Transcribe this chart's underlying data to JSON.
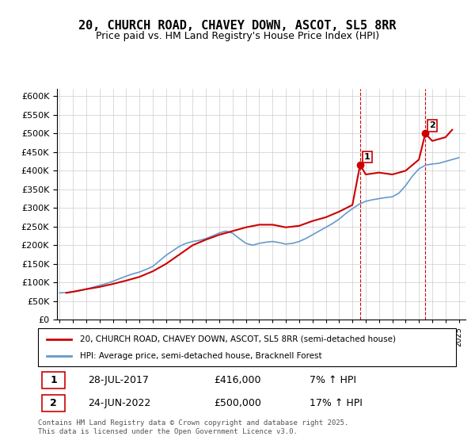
{
  "title": "20, CHURCH ROAD, CHAVEY DOWN, ASCOT, SL5 8RR",
  "subtitle": "Price paid vs. HM Land Registry's House Price Index (HPI)",
  "ylabel_ticks": [
    "£0",
    "£50K",
    "£100K",
    "£150K",
    "£200K",
    "£250K",
    "£300K",
    "£350K",
    "£400K",
    "£450K",
    "£500K",
    "£550K",
    "£600K"
  ],
  "ytick_values": [
    0,
    50000,
    100000,
    150000,
    200000,
    250000,
    300000,
    350000,
    400000,
    450000,
    500000,
    550000,
    600000
  ],
  "legend_line1": "20, CHURCH ROAD, CHAVEY DOWN, ASCOT, SL5 8RR (semi-detached house)",
  "legend_line2": "HPI: Average price, semi-detached house, Bracknell Forest",
  "annotation1_label": "1",
  "annotation1_date": "28-JUL-2017",
  "annotation1_price": "£416,000",
  "annotation1_hpi": "7% ↑ HPI",
  "annotation2_label": "2",
  "annotation2_date": "24-JUN-2022",
  "annotation2_price": "£500,000",
  "annotation2_hpi": "17% ↑ HPI",
  "footer": "Contains HM Land Registry data © Crown copyright and database right 2025.\nThis data is licensed under the Open Government Licence v3.0.",
  "line_color_red": "#cc0000",
  "line_color_blue": "#6699cc",
  "background_color": "#ffffff",
  "grid_color": "#cccccc",
  "annotation_box_color": "#cc0000",
  "x_start_year": 1995,
  "x_end_year": 2025,
  "hpi_x": [
    1995,
    1995.5,
    1996,
    1996.5,
    1997,
    1997.5,
    1998,
    1998.5,
    1999,
    1999.5,
    2000,
    2000.5,
    2001,
    2001.5,
    2002,
    2002.5,
    2003,
    2003.5,
    2004,
    2004.5,
    2005,
    2005.5,
    2006,
    2006.5,
    2007,
    2007.5,
    2008,
    2008.5,
    2009,
    2009.5,
    2010,
    2010.5,
    2011,
    2011.5,
    2012,
    2012.5,
    2013,
    2013.5,
    2014,
    2014.5,
    2015,
    2015.5,
    2016,
    2016.5,
    2017,
    2017.5,
    2018,
    2018.5,
    2019,
    2019.5,
    2020,
    2020.5,
    2021,
    2021.5,
    2022,
    2022.5,
    2023,
    2023.5,
    2024,
    2024.5,
    2025
  ],
  "hpi_y": [
    72000,
    73000,
    75000,
    78000,
    82000,
    87000,
    92000,
    97000,
    103000,
    110000,
    117000,
    123000,
    128000,
    135000,
    143000,
    158000,
    173000,
    185000,
    197000,
    205000,
    210000,
    213000,
    218000,
    225000,
    233000,
    238000,
    232000,
    218000,
    205000,
    200000,
    205000,
    208000,
    210000,
    207000,
    203000,
    205000,
    210000,
    218000,
    228000,
    238000,
    248000,
    258000,
    270000,
    285000,
    298000,
    310000,
    318000,
    322000,
    325000,
    328000,
    330000,
    340000,
    360000,
    385000,
    405000,
    415000,
    418000,
    420000,
    425000,
    430000,
    435000
  ],
  "price_x": [
    1995.5,
    1996,
    1997,
    1998,
    1999,
    2000,
    2001,
    2002,
    2003,
    2004,
    2005,
    2006,
    2007,
    2008,
    2009,
    2010,
    2011,
    2012,
    2013,
    2014,
    2015,
    2016,
    2017,
    2017.58,
    2018,
    2019,
    2020,
    2021,
    2022,
    2022.48,
    2023,
    2024,
    2024.5
  ],
  "price_y": [
    72000,
    75000,
    82000,
    88000,
    96000,
    105000,
    115000,
    130000,
    150000,
    175000,
    200000,
    215000,
    228000,
    238000,
    248000,
    255000,
    255000,
    248000,
    252000,
    265000,
    275000,
    290000,
    308000,
    416000,
    390000,
    395000,
    390000,
    400000,
    430000,
    500000,
    480000,
    490000,
    510000
  ],
  "point1_x": 2017.58,
  "point1_y": 416000,
  "point2_x": 2022.48,
  "point2_y": 500000,
  "vline1_x": 2017.58,
  "vline2_x": 2022.48,
  "ylim": [
    0,
    620000
  ],
  "xlim": [
    1994.8,
    2025.5
  ]
}
